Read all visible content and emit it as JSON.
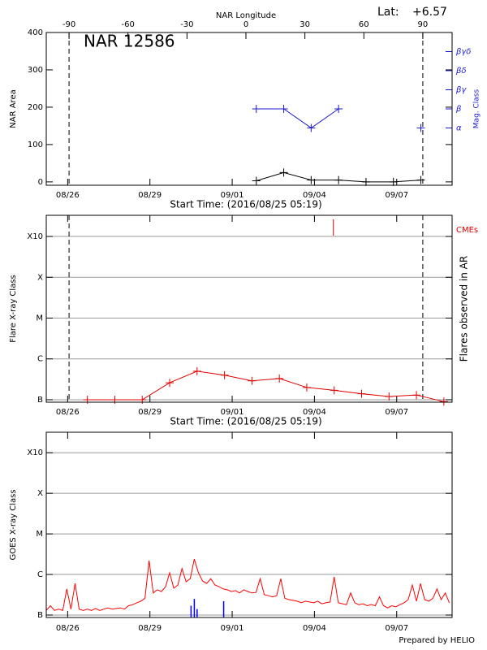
{
  "chart_data": [
    {
      "type": "line",
      "title": "NAR 12586",
      "annotations": [
        "Lat:",
        "+6.57"
      ],
      "xlabel": "Start Time: (2016/08/25 05:19)",
      "ylabel": "NAR Area",
      "x2label": "NAR Longitude",
      "y2label": "Mag. Class",
      "xlim": [
        0,
        14.8
      ],
      "xticks": [
        {
          "value": 0.78,
          "label": "08/26"
        },
        {
          "value": 3.78,
          "label": "08/29"
        },
        {
          "value": 6.78,
          "label": "09/01"
        },
        {
          "value": 9.78,
          "label": "09/04"
        },
        {
          "value": 12.78,
          "label": "09/07"
        }
      ],
      "x2lim": [
        -101.6,
        104.9
      ],
      "x2ticks": [
        -90,
        -60,
        -30,
        0,
        30,
        60,
        90
      ],
      "ylim": [
        -9,
        400
      ],
      "yticks": [
        0,
        100,
        200,
        300,
        400
      ],
      "y2lim": [
        0,
        8
      ],
      "y2ticks": [
        {
          "value": 3,
          "label": "α"
        },
        {
          "value": 4,
          "label": "β"
        },
        {
          "value": 5,
          "label": "βγ"
        },
        {
          "value": 6,
          "label": "βδ"
        },
        {
          "value": 7,
          "label": "βγδ"
        }
      ],
      "y2color": "#1a1ad0",
      "limb_lines": true,
      "series": [
        {
          "color": "#000000",
          "marker": "plus",
          "x": [
            7.66,
            8.66,
            9.66,
            10.66,
            11.66,
            12.66,
            13.66
          ],
          "values": [
            3,
            25,
            5,
            5,
            0,
            0,
            5
          ]
        },
        {
          "color": "#1a1ad0",
          "marker": "plus",
          "axis": "y2",
          "x": [
            7.66,
            8.66,
            9.66,
            10.66,
            11.66,
            12.66,
            13.66
          ],
          "values": [
            4,
            4,
            3,
            4,
            null,
            null,
            3
          ]
        }
      ]
    },
    {
      "type": "line",
      "xlabel": "Start Time: (2016/08/25 05:19)",
      "ylabel": "Flare X-ray Class",
      "y2label": "Flares observed in AR",
      "xlim": [
        0,
        14.8
      ],
      "xticks": [
        {
          "value": 0.78,
          "label": "08/26"
        },
        {
          "value": 3.78,
          "label": "08/29"
        },
        {
          "value": 6.78,
          "label": "09/01"
        },
        {
          "value": 9.78,
          "label": "09/04"
        },
        {
          "value": 12.78,
          "label": "09/07"
        }
      ],
      "ylog": true,
      "ylim": [
        8.7e-08,
        0.0033
      ],
      "yticks": [
        {
          "value": 1e-07,
          "label": "B"
        },
        {
          "value": 1e-06,
          "label": "C"
        },
        {
          "value": 1e-05,
          "label": "M"
        },
        {
          "value": 0.0001,
          "label": "X"
        },
        {
          "value": 0.001,
          "label": "X10"
        }
      ],
      "grid": true,
      "limb_lines": true,
      "cmes": {
        "label": "CMEs",
        "color": "#e00000",
        "x": [
          10.47
        ]
      },
      "series": [
        {
          "color": "#e00000",
          "marker": "plus",
          "x": [
            1.5,
            2.5,
            3.5,
            4.5,
            5.5,
            6.5,
            7.5,
            8.5,
            9.5,
            10.5,
            11.5,
            12.5,
            13.5,
            14.5
          ],
          "values": [
            1e-07,
            1e-07,
            1e-07,
            2.6e-07,
            5e-07,
            4e-07,
            2.9e-07,
            3.3e-07,
            2e-07,
            1.7e-07,
            1.4e-07,
            1.2e-07,
            1.3e-07,
            9e-08
          ]
        }
      ]
    },
    {
      "type": "line",
      "ylabel": "GOES X-ray Class",
      "xlim": [
        0,
        14.8
      ],
      "xticks": [
        {
          "value": 0.78,
          "label": "08/26"
        },
        {
          "value": 3.78,
          "label": "08/29"
        },
        {
          "value": 6.78,
          "label": "09/01"
        },
        {
          "value": 9.78,
          "label": "09/04"
        },
        {
          "value": 12.78,
          "label": "09/07"
        }
      ],
      "ylog": true,
      "ylim": [
        8.7e-08,
        0.0032
      ],
      "yticks": [
        {
          "value": 1e-07,
          "label": "B"
        },
        {
          "value": 1e-06,
          "label": "C"
        },
        {
          "value": 1e-05,
          "label": "M"
        },
        {
          "value": 0.0001,
          "label": "X"
        },
        {
          "value": 0.001,
          "label": "X10"
        }
      ],
      "grid": true,
      "series": [
        {
          "color": "#ff0000",
          "x": [
            0,
            0.15,
            0.3,
            0.45,
            0.6,
            0.75,
            0.9,
            1.05,
            1.2,
            1.35,
            1.5,
            1.65,
            1.8,
            1.95,
            2.1,
            2.25,
            2.4,
            2.55,
            2.7,
            2.85,
            3,
            3.15,
            3.3,
            3.45,
            3.6,
            3.75,
            3.9,
            4.05,
            4.2,
            4.35,
            4.5,
            4.65,
            4.8,
            4.95,
            5.1,
            5.25,
            5.4,
            5.55,
            5.7,
            5.85,
            6,
            6.15,
            6.3,
            6.45,
            6.6,
            6.75,
            6.9,
            7.05,
            7.2,
            7.35,
            7.5,
            7.65,
            7.8,
            7.95,
            8.1,
            8.25,
            8.4,
            8.55,
            8.7,
            8.85,
            9,
            9.15,
            9.3,
            9.45,
            9.6,
            9.75,
            9.9,
            10.05,
            10.2,
            10.35,
            10.5,
            10.65,
            10.8,
            10.95,
            11.1,
            11.25,
            11.4,
            11.55,
            11.7,
            11.85,
            12,
            12.15,
            12.3,
            12.45,
            12.6,
            12.75,
            12.9,
            13.05,
            13.2,
            13.35,
            13.5,
            13.65,
            13.8,
            13.95,
            14.1,
            14.25,
            14.4,
            14.55,
            14.7
          ],
          "values": [
            1.3e-07,
            1.7e-07,
            1.3e-07,
            1.4e-07,
            1.3e-07,
            4.4e-07,
            1.4e-07,
            6e-07,
            1.4e-07,
            1.3e-07,
            1.4e-07,
            1.3e-07,
            1.45e-07,
            1.3e-07,
            1.4e-07,
            1.5e-07,
            1.4e-07,
            1.45e-07,
            1.5e-07,
            1.4e-07,
            1.7e-07,
            1.8e-07,
            2e-07,
            2.2e-07,
            2.6e-07,
            2.2e-06,
            3.5e-07,
            4.2e-07,
            3.8e-07,
            5e-07,
            1.1e-06,
            4.6e-07,
            5.5e-07,
            1.4e-06,
            6.6e-07,
            7.9e-07,
            2.4e-06,
            1.1e-06,
            6.9e-07,
            6e-07,
            7.9e-07,
            5.5e-07,
            5e-07,
            4.4e-07,
            4.2e-07,
            3.8e-07,
            4e-07,
            3.5e-07,
            4.2e-07,
            3.8e-07,
            3.5e-07,
            3.6e-07,
            7.9e-07,
            3.2e-07,
            3e-07,
            2.8e-07,
            3e-07,
            7.9e-07,
            2.6e-07,
            2.4e-07,
            2.3e-07,
            2.2e-07,
            2e-07,
            2.2e-07,
            2.1e-07,
            2e-07,
            2.2e-07,
            1.9e-07,
            2e-07,
            2.1e-07,
            8.7e-07,
            2e-07,
            1.9e-07,
            1.8e-07,
            3.5e-07,
            2e-07,
            1.8e-07,
            1.9e-07,
            1.7e-07,
            1.8e-07,
            1.7e-07,
            2.8e-07,
            1.7e-07,
            1.5e-07,
            1.7e-07,
            1.6e-07,
            1.8e-07,
            2e-07,
            2.4e-07,
            5.5e-07,
            2.2e-07,
            6e-07,
            2.4e-07,
            2.2e-07,
            2.6e-07,
            4.4e-07,
            2.4e-07,
            3.5e-07,
            2e-07
          ]
        },
        {
          "color": "#0000ff",
          "type": "bar",
          "x": [
            5.28,
            5.4,
            5.5,
            6.47
          ],
          "values": [
            1.7e-07,
            2.5e-07,
            1.4e-07,
            2.2e-07
          ]
        }
      ]
    }
  ],
  "footer": "Prepared by HELIO"
}
